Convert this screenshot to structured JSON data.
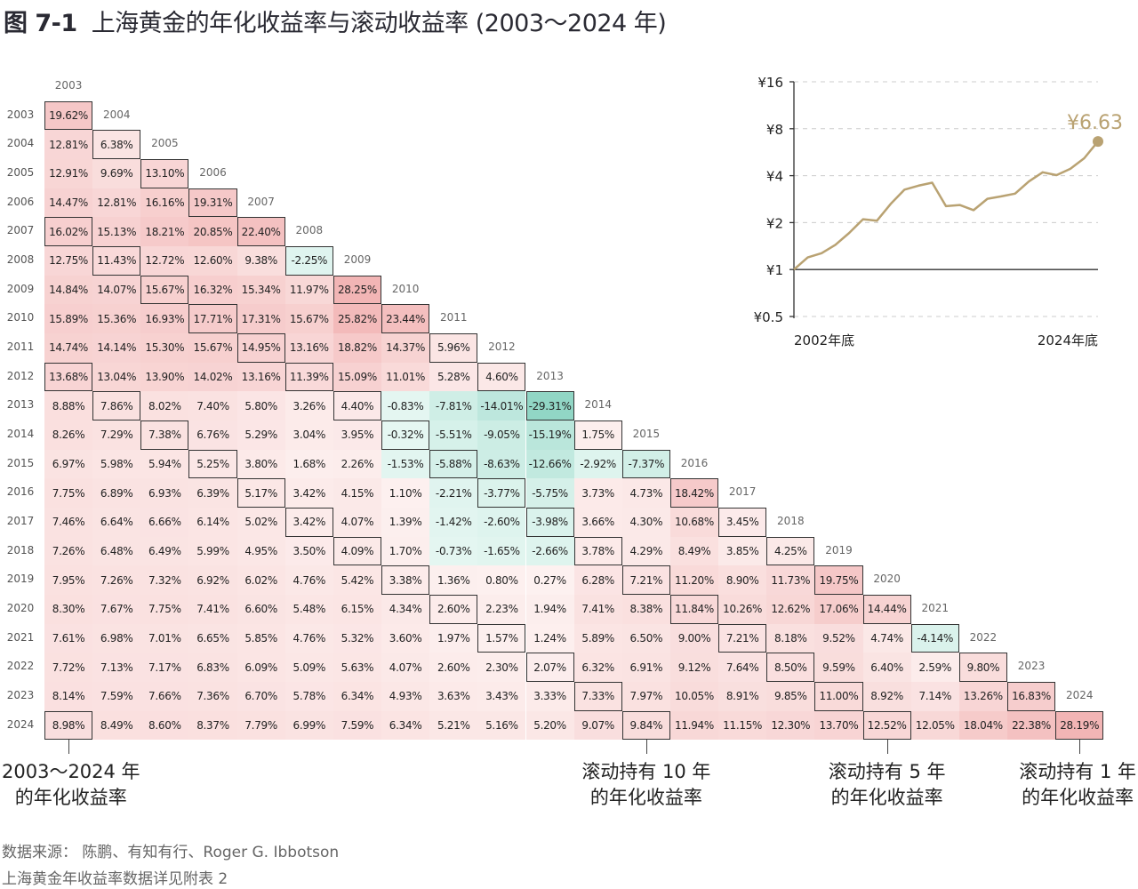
{
  "title": {
    "figure": "图 7-1",
    "text": "上海黄金的年化收益率与滚动收益率 (2003～2024 年)"
  },
  "annotations": [
    {
      "lines": [
        "2003～2024 年",
        "的年化收益率"
      ],
      "column_year": 2003,
      "align": "left"
    },
    {
      "lines": [
        "滚动持有 10 年",
        "的年化收益率"
      ],
      "column_year": 2015,
      "align": "center"
    },
    {
      "lines": [
        "滚动持有 5 年",
        "的年化收益率"
      ],
      "column_year": 2020,
      "align": "center"
    },
    {
      "lines": [
        "滚动持有 1 年",
        "的年化收益率"
      ],
      "column_year": 2024,
      "align": "right"
    }
  ],
  "footer": {
    "source": "数据来源：  陈鹏、有知有行、Roger G. Ibbotson",
    "note": "上海黄金年收益率数据详见附表 2"
  },
  "colors": {
    "positive_low": "#fdf2f1",
    "positive_high": "#f2b5b5",
    "negative_low": "#e6f7f2",
    "negative_high": "#8fd5c4",
    "line": "#b9a272",
    "box": "#333333"
  },
  "chart_data": [
    {
      "type": "heatmap",
      "title": "年化收益率（起始年 × 结束年）",
      "start_years": [
        2003,
        2004,
        2005,
        2006,
        2007,
        2008,
        2009,
        2010,
        2011,
        2012,
        2013,
        2014,
        2015,
        2016,
        2017,
        2018,
        2019,
        2020,
        2021,
        2022,
        2023,
        2024
      ],
      "end_years": [
        2003,
        2004,
        2005,
        2006,
        2007,
        2008,
        2009,
        2010,
        2011,
        2012,
        2013,
        2014,
        2015,
        2016,
        2017,
        2018,
        2019,
        2020,
        2021,
        2022,
        2023,
        2024
      ],
      "unit": "%",
      "highlighted_holding_periods": [
        1,
        5,
        10,
        22
      ],
      "values": [
        [
          19.62
        ],
        [
          12.81,
          6.38
        ],
        [
          12.91,
          9.69,
          13.1
        ],
        [
          14.47,
          12.81,
          16.16,
          19.31
        ],
        [
          16.02,
          15.13,
          18.21,
          20.85,
          22.4
        ],
        [
          12.75,
          11.43,
          12.72,
          12.6,
          9.38,
          -2.25
        ],
        [
          14.84,
          14.07,
          15.67,
          16.32,
          15.34,
          11.97,
          28.25
        ],
        [
          15.89,
          15.36,
          16.93,
          17.71,
          17.31,
          15.67,
          25.82,
          23.44
        ],
        [
          14.74,
          14.14,
          15.3,
          15.67,
          14.95,
          13.16,
          18.82,
          14.37,
          5.96
        ],
        [
          13.68,
          13.04,
          13.9,
          14.02,
          13.16,
          11.39,
          15.09,
          11.01,
          5.28,
          4.6
        ],
        [
          8.88,
          7.86,
          8.02,
          7.4,
          5.8,
          3.26,
          4.4,
          -0.83,
          -7.81,
          -14.01,
          -29.31
        ],
        [
          8.26,
          7.29,
          7.38,
          6.76,
          5.29,
          3.04,
          3.95,
          -0.32,
          -5.51,
          -9.05,
          -15.19,
          1.75
        ],
        [
          6.97,
          5.98,
          5.94,
          5.25,
          3.8,
          1.68,
          2.26,
          -1.53,
          -5.88,
          -8.63,
          -12.66,
          -2.92,
          -7.37
        ],
        [
          7.75,
          6.89,
          6.93,
          6.39,
          5.17,
          3.42,
          4.15,
          1.1,
          -2.21,
          -3.77,
          -5.75,
          3.73,
          4.73,
          18.42
        ],
        [
          7.46,
          6.64,
          6.66,
          6.14,
          5.02,
          3.42,
          4.07,
          1.39,
          -1.42,
          -2.6,
          -3.98,
          3.66,
          4.3,
          10.68,
          3.45
        ],
        [
          7.26,
          6.48,
          6.49,
          5.99,
          4.95,
          3.5,
          4.09,
          1.7,
          -0.73,
          -1.65,
          -2.66,
          3.78,
          4.29,
          8.49,
          3.85,
          4.25
        ],
        [
          7.95,
          7.26,
          7.32,
          6.92,
          6.02,
          4.76,
          5.42,
          3.38,
          1.36,
          0.8,
          0.27,
          6.28,
          7.21,
          11.2,
          8.9,
          11.73,
          19.75
        ],
        [
          8.3,
          7.67,
          7.75,
          7.41,
          6.6,
          5.48,
          6.15,
          4.34,
          2.6,
          2.23,
          1.94,
          7.41,
          8.38,
          11.84,
          10.26,
          12.62,
          17.06,
          14.44
        ],
        [
          7.61,
          6.98,
          7.01,
          6.65,
          5.85,
          4.76,
          5.32,
          3.6,
          1.97,
          1.57,
          1.24,
          5.89,
          6.5,
          9.0,
          7.21,
          8.18,
          9.52,
          4.74,
          -4.14
        ],
        [
          7.72,
          7.13,
          7.17,
          6.83,
          6.09,
          5.09,
          5.63,
          4.07,
          2.6,
          2.3,
          2.07,
          6.32,
          6.91,
          9.12,
          7.64,
          8.5,
          9.59,
          6.4,
          2.59,
          9.8
        ],
        [
          8.14,
          7.59,
          7.66,
          7.36,
          6.7,
          5.78,
          6.34,
          4.93,
          3.63,
          3.43,
          3.33,
          7.33,
          7.97,
          10.05,
          8.91,
          9.85,
          11.0,
          8.92,
          7.14,
          13.26,
          16.83
        ],
        [
          8.98,
          8.49,
          8.6,
          8.37,
          7.79,
          6.99,
          7.59,
          6.34,
          5.21,
          5.16,
          5.2,
          9.07,
          9.84,
          11.94,
          11.15,
          12.3,
          13.7,
          12.52,
          12.05,
          18.04,
          22.38,
          28.19
        ]
      ]
    },
    {
      "type": "line",
      "title": "",
      "x": [
        2002,
        2003,
        2004,
        2005,
        2006,
        2007,
        2008,
        2009,
        2010,
        2011,
        2012,
        2013,
        2014,
        2015,
        2016,
        2017,
        2018,
        2019,
        2020,
        2021,
        2022,
        2023,
        2024
      ],
      "y": [
        1,
        1.196,
        1.273,
        1.44,
        1.718,
        2.103,
        2.055,
        2.636,
        3.254,
        3.448,
        3.607,
        2.55,
        2.594,
        2.403,
        2.845,
        2.944,
        3.069,
        3.675,
        4.206,
        4.031,
        4.426,
        5.171,
        6.63
      ],
      "xlabels": [
        "2002年底",
        "2024年底"
      ],
      "yticks": [
        0.5,
        1,
        2,
        4,
        8,
        16
      ],
      "ytick_labels": [
        "¥0.5",
        "¥1",
        "¥2",
        "¥4",
        "¥8",
        "¥16"
      ],
      "yscale": "log",
      "ylim": [
        0.5,
        16
      ],
      "end_label": "¥6.63",
      "grid": true
    }
  ]
}
